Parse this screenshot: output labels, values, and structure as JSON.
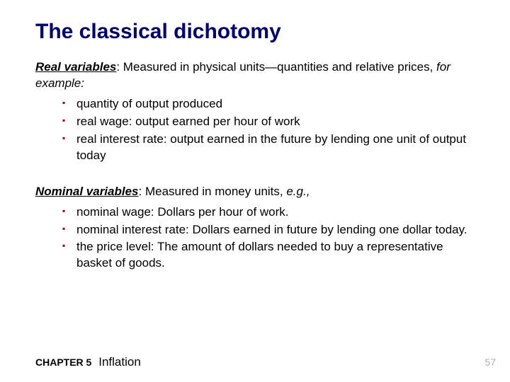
{
  "title": "The classical dichotomy",
  "title_color": "#000066",
  "bullet_color": "#8b0000",
  "background_color": "#ffffff",
  "text_color": "#000000",
  "page_number_color": "#b0b0b0",
  "fonts": {
    "family": "Arial",
    "title_size": 30,
    "body_size": 17,
    "footer_size": 14
  },
  "section1": {
    "term": "Real variables",
    "desc": ": Measured in physical units—quantities and relative prices, ",
    "eg": "for example:",
    "items": [
      "quantity of output produced",
      "real wage: output earned per hour of work",
      "real interest rate: output earned in the future by lending one unit of output today"
    ]
  },
  "section2": {
    "term": "Nominal variables",
    "desc": ": Measured in money units, ",
    "eg": "e.g.,",
    "items": [
      "nominal wage: Dollars per hour of work.",
      "nominal interest rate: Dollars earned in future by lending one dollar today.",
      "the price level: The amount of dollars needed to buy a representative basket of goods."
    ]
  },
  "footer": {
    "chapter": "CHAPTER 5",
    "chapter_title": "Inflation",
    "page": "57"
  }
}
